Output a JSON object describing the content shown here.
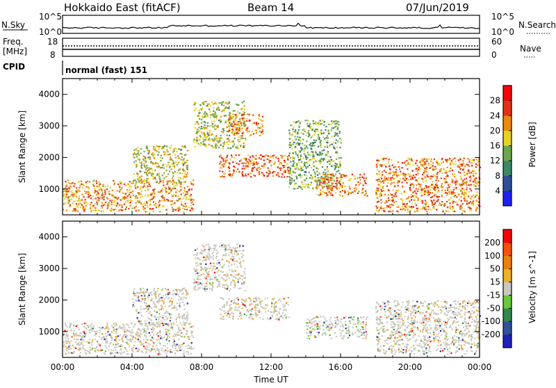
{
  "header": {
    "title_left": "Hokkaido East (fitACF)",
    "title_center": "Beam 14",
    "title_right": "07/Jun/2019"
  },
  "strips": {
    "nsky_label": "N.Sky",
    "nsky_ticks": [
      "10^5",
      "10^0"
    ],
    "nsearch_label": "N.Search",
    "nsearch_ticks": [
      "10^5",
      "10^0"
    ],
    "freq_label_1": "Freq.",
    "freq_label_2": "[MHz]",
    "freq_ticks": [
      "18",
      "8"
    ],
    "nave_label": "Nave",
    "nave_ticks": [
      "60",
      "0"
    ],
    "cpid_label": "CPID",
    "cpid_text": "normal (fast) 151"
  },
  "chart_data": [
    {
      "type": "heatmap",
      "title": "",
      "ylabel": "Slant Range [km]",
      "xlabel": "",
      "ylim": [
        180,
        4500
      ],
      "y_ticks": [
        "1000",
        "2000",
        "3000",
        "4000"
      ],
      "colorbar_label": "Power [dB]",
      "colorbar_ticks": [
        "4",
        "8",
        "12",
        "16",
        "20",
        "24",
        "28"
      ],
      "colors": [
        "#1f1fff",
        "#2e4f9e",
        "#3a8a66",
        "#6aa84a",
        "#e8d21a",
        "#f08a00",
        "#e83010",
        "#ff0000"
      ],
      "scatter_regions": [
        {
          "t0": 0.0,
          "t1": 7.5,
          "r0": 300,
          "r1": 1300,
          "level": 0.7
        },
        {
          "t0": 4.0,
          "t1": 7.2,
          "r0": 1200,
          "r1": 2400,
          "level": 0.55
        },
        {
          "t0": 7.5,
          "t1": 10.5,
          "r0": 2300,
          "r1": 3800,
          "level": 0.5
        },
        {
          "t0": 9.0,
          "t1": 13.0,
          "r0": 1400,
          "r1": 2100,
          "level": 0.8
        },
        {
          "t0": 9.5,
          "t1": 11.5,
          "r0": 2700,
          "r1": 3400,
          "level": 0.75
        },
        {
          "t0": 13.0,
          "t1": 16.0,
          "r0": 1000,
          "r1": 3200,
          "level": 0.4
        },
        {
          "t0": 14.5,
          "t1": 17.5,
          "r0": 800,
          "r1": 1500,
          "level": 0.75
        },
        {
          "t0": 18.0,
          "t1": 24.0,
          "r0": 300,
          "r1": 2000,
          "level": 0.75
        }
      ]
    },
    {
      "type": "heatmap",
      "title": "",
      "ylabel": "Slant Range [km]",
      "xlabel": "Time UT",
      "ylim": [
        180,
        4500
      ],
      "y_ticks": [
        "1000",
        "2000",
        "3000",
        "4000"
      ],
      "x_ticks": [
        "00:00",
        "04:00",
        "08:00",
        "12:00",
        "16:00",
        "20:00",
        "00:00"
      ],
      "x_values_hours": [
        0,
        4,
        8,
        12,
        16,
        20,
        24
      ],
      "colorbar_label": "Velocity [m s^-1]",
      "colorbar_ticks": [
        "200",
        "100",
        "50",
        "15",
        "-15",
        "-50",
        "-100",
        "-200"
      ],
      "colors": [
        "#2020c0",
        "#3050a0",
        "#2e8a4a",
        "#66cc33",
        "#c8c8c0",
        "#f0b020",
        "#f08000",
        "#ff5000",
        "#ff0000"
      ],
      "scatter_regions": [
        {
          "t0": 0.0,
          "t1": 7.5,
          "r0": 300,
          "r1": 1300,
          "level": 0.5
        },
        {
          "t0": 4.0,
          "t1": 7.2,
          "r0": 1200,
          "r1": 2400,
          "level": 0.5
        },
        {
          "t0": 7.5,
          "t1": 10.5,
          "r0": 2300,
          "r1": 3800,
          "level": 0.5
        },
        {
          "t0": 9.0,
          "t1": 13.0,
          "r0": 1400,
          "r1": 2100,
          "level": 0.5
        },
        {
          "t0": 14.0,
          "t1": 17.5,
          "r0": 800,
          "r1": 1500,
          "level": 0.35
        },
        {
          "t0": 18.0,
          "t1": 24.0,
          "r0": 300,
          "r1": 2000,
          "level": 0.5
        }
      ]
    }
  ]
}
